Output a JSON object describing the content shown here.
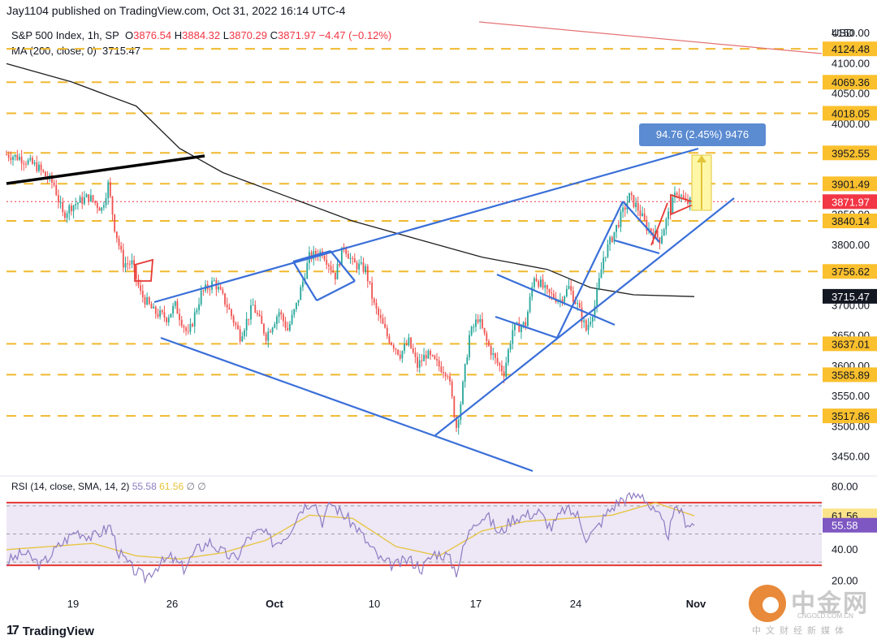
{
  "header": {
    "published": "Jay1104 published on TradingView.com, Oct 31, 2022 16:14 UTC-4"
  },
  "legend": {
    "symbol": "S&P 500 Index, 1h, SP",
    "open_label": "O",
    "open": "3876.54",
    "high_label": "H",
    "high": "3884.32",
    "low_label": "L",
    "low": "3870.29",
    "close_label": "C",
    "close": "3871.97",
    "change": "−4.47 (−0.12%)",
    "ma_label": "MA (200, close, 0)",
    "ma_value": "3715.47"
  },
  "rsi_legend": {
    "label": "RSI (14, close, SMA, 14, 2)",
    "rsi": "55.58",
    "sma": "61.56",
    "extras": "∅ ∅"
  },
  "axis": {
    "currency": "USD"
  },
  "footer": {
    "brand": "TradingView"
  },
  "watermark": {
    "cn": "中金网",
    "domain": "CNGOLD.COM.CN",
    "sub": "中文财经新媒体"
  },
  "colors": {
    "up": "#26a69a",
    "down": "#ef5350",
    "trendline": "#3a6fd8",
    "level": "#f0b92e",
    "ma": "#1f1f1f",
    "rsi": "#8e7cc3",
    "rsi_sma": "#e7c33a",
    "rsi_band": "#ede7f6",
    "rsi_bound": "#e53935"
  },
  "chart_data": [
    {
      "type": "candlestick",
      "title": "S&P 500 Index, 1h, SP",
      "ylim": [
        3420,
        4165
      ],
      "y_ticks": [
        "4150.00",
        "4100.00",
        "4050.00",
        "4000.00",
        "3850.00",
        "3800.00",
        "3700.00",
        "3650.00",
        "3600.00",
        "3550.00",
        "3500.00",
        "3450.00"
      ],
      "x_ticks": [
        "19",
        "26",
        "Oct",
        "10",
        "17",
        "24",
        "Nov"
      ],
      "levels": [
        4124.48,
        4069.36,
        4018.05,
        3952.55,
        3901.49,
        3840.14,
        3756.62,
        3637.01,
        3585.89,
        3517.86
      ],
      "level_labels": [
        "4124.48",
        "4069.36",
        "4018.05",
        "3952.55",
        "3901.49",
        "3840.14",
        "3756.62",
        "3637.01",
        "3585.89",
        "3517.86"
      ],
      "last_price": 3871.97,
      "last_price_label": "3871.97",
      "ma_value": 3715.47,
      "ma_label": "3715.47",
      "measure_label": "94.76 (2.45%) 9476",
      "series_path": [
        [
          0,
          3950
        ],
        [
          6,
          3945
        ],
        [
          14,
          3930
        ],
        [
          22,
          3900
        ],
        [
          26,
          3850
        ],
        [
          30,
          3865
        ],
        [
          38,
          3880
        ],
        [
          44,
          3860
        ],
        [
          47,
          3900
        ],
        [
          50,
          3830
        ],
        [
          54,
          3770
        ],
        [
          58,
          3770
        ],
        [
          62,
          3720
        ],
        [
          68,
          3690
        ],
        [
          74,
          3680
        ],
        [
          78,
          3700
        ],
        [
          84,
          3650
        ],
        [
          90,
          3720
        ],
        [
          96,
          3740
        ],
        [
          102,
          3700
        ],
        [
          108,
          3650
        ],
        [
          114,
          3700
        ],
        [
          120,
          3650
        ],
        [
          126,
          3690
        ],
        [
          130,
          3660
        ],
        [
          134,
          3700
        ],
        [
          140,
          3780
        ],
        [
          146,
          3790
        ],
        [
          152,
          3750
        ],
        [
          156,
          3800
        ],
        [
          160,
          3770
        ],
        [
          166,
          3760
        ],
        [
          170,
          3700
        ],
        [
          176,
          3650
        ],
        [
          182,
          3620
        ],
        [
          186,
          3640
        ],
        [
          190,
          3600
        ],
        [
          194,
          3620
        ],
        [
          200,
          3600
        ],
        [
          204,
          3590
        ],
        [
          208,
          3500
        ],
        [
          210,
          3540
        ],
        [
          214,
          3650
        ],
        [
          218,
          3680
        ],
        [
          222,
          3640
        ],
        [
          226,
          3610
        ],
        [
          230,
          3590
        ],
        [
          234,
          3660
        ],
        [
          240,
          3670
        ],
        [
          244,
          3750
        ],
        [
          250,
          3720
        ],
        [
          256,
          3710
        ],
        [
          260,
          3730
        ],
        [
          264,
          3700
        ],
        [
          268,
          3660
        ],
        [
          272,
          3700
        ],
        [
          276,
          3780
        ],
        [
          282,
          3830
        ],
        [
          288,
          3880
        ],
        [
          292,
          3860
        ],
        [
          296,
          3830
        ],
        [
          302,
          3810
        ],
        [
          306,
          3850
        ],
        [
          310,
          3890
        ],
        [
          314,
          3870
        ],
        [
          318,
          3872
        ]
      ],
      "ma_path": [
        [
          0,
          4100
        ],
        [
          30,
          4070
        ],
        [
          60,
          4030
        ],
        [
          80,
          3960
        ],
        [
          100,
          3920
        ],
        [
          130,
          3880
        ],
        [
          160,
          3840
        ],
        [
          190,
          3810
        ],
        [
          220,
          3780
        ],
        [
          250,
          3760
        ],
        [
          270,
          3730
        ],
        [
          290,
          3718
        ],
        [
          318,
          3715
        ]
      ]
    },
    {
      "type": "line",
      "title": "RSI (14, close, SMA, 14, 2)",
      "ylim": [
        15,
        85
      ],
      "y_ticks": [
        "80.00",
        "40.00",
        "20.00"
      ],
      "overbought": 70,
      "oversold": 30,
      "rsi_label": "55.58",
      "sma_label": "61.56",
      "rsi_path": [
        [
          0,
          32
        ],
        [
          8,
          38
        ],
        [
          16,
          30
        ],
        [
          24,
          42
        ],
        [
          32,
          52
        ],
        [
          40,
          48
        ],
        [
          48,
          55
        ],
        [
          52,
          38
        ],
        [
          58,
          28
        ],
        [
          64,
          22
        ],
        [
          70,
          30
        ],
        [
          76,
          35
        ],
        [
          82,
          28
        ],
        [
          88,
          40
        ],
        [
          94,
          45
        ],
        [
          100,
          38
        ],
        [
          106,
          34
        ],
        [
          112,
          48
        ],
        [
          118,
          52
        ],
        [
          124,
          44
        ],
        [
          130,
          50
        ],
        [
          136,
          66
        ],
        [
          142,
          72
        ],
        [
          146,
          58
        ],
        [
          150,
          70
        ],
        [
          156,
          62
        ],
        [
          162,
          54
        ],
        [
          168,
          42
        ],
        [
          174,
          32
        ],
        [
          180,
          30
        ],
        [
          186,
          34
        ],
        [
          192,
          28
        ],
        [
          198,
          38
        ],
        [
          204,
          36
        ],
        [
          208,
          26
        ],
        [
          212,
          44
        ],
        [
          216,
          58
        ],
        [
          222,
          62
        ],
        [
          228,
          50
        ],
        [
          234,
          60
        ],
        [
          240,
          62
        ],
        [
          246,
          64
        ],
        [
          252,
          54
        ],
        [
          258,
          66
        ],
        [
          264,
          62
        ],
        [
          268,
          48
        ],
        [
          272,
          52
        ],
        [
          278,
          64
        ],
        [
          284,
          72
        ],
        [
          290,
          74
        ],
        [
          294,
          76
        ],
        [
          298,
          66
        ],
        [
          302,
          60
        ],
        [
          306,
          50
        ],
        [
          310,
          68
        ],
        [
          314,
          58
        ],
        [
          318,
          55.58
        ]
      ],
      "sma_path": [
        [
          0,
          40
        ],
        [
          20,
          42
        ],
        [
          40,
          44
        ],
        [
          60,
          36
        ],
        [
          80,
          34
        ],
        [
          100,
          38
        ],
        [
          120,
          46
        ],
        [
          140,
          62
        ],
        [
          160,
          60
        ],
        [
          180,
          42
        ],
        [
          200,
          36
        ],
        [
          220,
          52
        ],
        [
          240,
          58
        ],
        [
          260,
          60
        ],
        [
          280,
          62
        ],
        [
          300,
          70
        ],
        [
          318,
          61.56
        ]
      ]
    }
  ]
}
